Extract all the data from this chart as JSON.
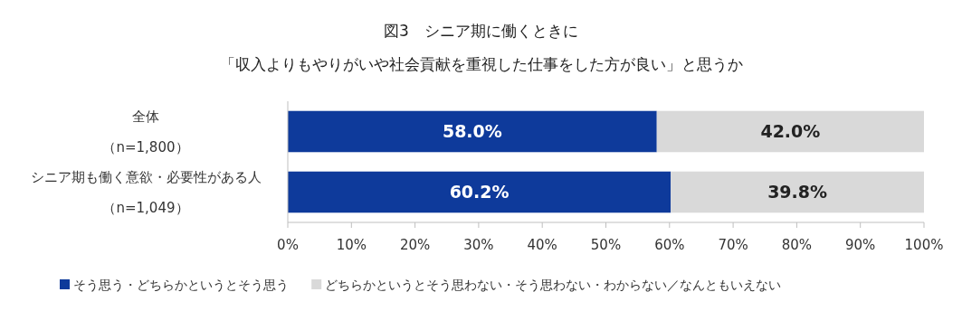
{
  "chart_data": {
    "type": "bar",
    "orientation": "horizontal",
    "stacked": true,
    "title": "図3　シニア期に働くときに",
    "subtitle": "「収入よりもやりがいや社会貢献を重視した仕事をした方が良い」と思うか",
    "categories": [
      "全体（n=1,800）",
      "シニア期も働く意欲・必要性がある人（n=1,049）"
    ],
    "series": [
      {
        "name": "そう思う・どちらかというとそう思う",
        "color": "#0e3a9b",
        "values": [
          58.0,
          60.2
        ],
        "value_labels": [
          "58.0%",
          "60.2%"
        ]
      },
      {
        "name": "どちらかというとそう思わない・そう思わない・わからない／なんともいえない",
        "color": "#d9d9d9",
        "values": [
          42.0,
          39.8
        ],
        "value_labels": [
          "42.0%",
          "39.8%"
        ]
      }
    ],
    "xlim": [
      0,
      100
    ],
    "xticks": [
      {
        "value": 0,
        "label": "0%"
      },
      {
        "value": 10,
        "label": "10%"
      },
      {
        "value": 20,
        "label": "20%"
      },
      {
        "value": 30,
        "label": "30%"
      },
      {
        "value": 40,
        "label": "40%"
      },
      {
        "value": 50,
        "label": "50%"
      },
      {
        "value": 60,
        "label": "60%"
      },
      {
        "value": 70,
        "label": "70%"
      },
      {
        "value": 80,
        "label": "80%"
      },
      {
        "value": 90,
        "label": "90%"
      },
      {
        "value": 100,
        "label": "100%"
      }
    ],
    "legend": "bottom"
  }
}
